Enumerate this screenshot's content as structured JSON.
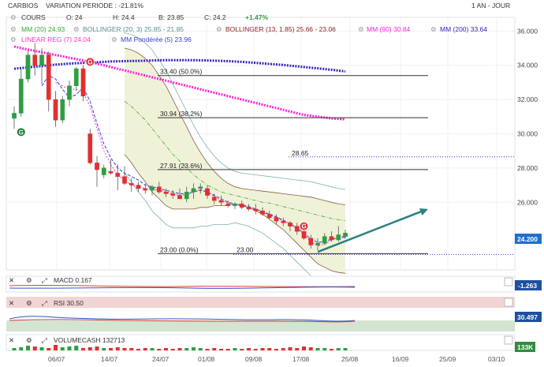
{
  "header": {
    "name": "CARBIOS",
    "variation": "VARIATION PERIODE : -21.81%",
    "period": "1 AN - JOUR",
    "ohlc": {
      "o_label": "O:",
      "o": "24",
      "h_label": "H:",
      "h": "24.4",
      "b_label": "B:",
      "b": "23.85",
      "c_label": "C:",
      "c": "24.2",
      "change": "+1.47%"
    }
  },
  "legend": {
    "cours": "COURS",
    "mm20": "MM (20)  24.93",
    "bollinger20": "BOLLINGER (20, 3)  25.85 - 21.85",
    "bollinger13": "BOLLINGER (13, 1.85)  25.66 - 23.06",
    "mm90": "MM (90)  30.84",
    "mm200": "MM (200)  33.64",
    "linreg": "LINEAR REG (7)  24.04",
    "mm_pond": "MM Pondérée (5)  23.96"
  },
  "colors": {
    "up": "#2e9e44",
    "down": "#e03030",
    "mm20": "#33aa33",
    "bollinger": "#d4d8a0",
    "bollinger_fill": "#f0f2d8",
    "bollinger2": "#8c5a3c",
    "mm90": "#ff22dd",
    "mm200": "#3322bb",
    "linreg": "#ff33cc",
    "wma": "#3344cc",
    "trend_arrow": "#2a8080",
    "price_tag": "#1f6fd0"
  },
  "chart_data": {
    "type": "candlestick",
    "y_ticks": [
      "36.000",
      "34.000",
      "32.000",
      "30.000",
      "28.000",
      "26.000"
    ],
    "ylim": [
      22.6,
      36.2
    ],
    "x_ticks": [
      "06/07",
      "14/07",
      "24/07",
      "01/08",
      "09/08",
      "17/08",
      "25/08",
      "16/09",
      "25/09",
      "03/10"
    ],
    "last_price": "24.200",
    "candles": [
      [
        30.9,
        31.6,
        30.3,
        31.2
      ],
      [
        31.2,
        33.8,
        31.0,
        33.2
      ],
      [
        33.2,
        34.9,
        33.0,
        34.6
      ],
      [
        34.6,
        35.3,
        33.4,
        34.0
      ],
      [
        34.0,
        35.0,
        32.9,
        34.6
      ],
      [
        34.6,
        34.8,
        31.3,
        32.0
      ],
      [
        32.0,
        32.5,
        30.4,
        30.8
      ],
      [
        30.8,
        32.2,
        30.6,
        32.0
      ],
      [
        32.0,
        33.1,
        31.6,
        32.8
      ],
      [
        32.8,
        33.9,
        32.5,
        33.8
      ],
      [
        33.8,
        34.0,
        31.9,
        32.2
      ],
      [
        30.0,
        30.3,
        28.2,
        28.3
      ],
      [
        28.3,
        28.7,
        26.9,
        27.9
      ],
      [
        27.6,
        28.2,
        27.4,
        28.0
      ],
      [
        27.8,
        28.5,
        27.6,
        27.7
      ],
      [
        27.7,
        28.2,
        26.7,
        27.5
      ],
      [
        27.5,
        28.1,
        27.0,
        27.1
      ],
      [
        27.1,
        27.4,
        26.6,
        27.0
      ],
      [
        27.0,
        27.2,
        26.6,
        26.8
      ],
      [
        26.8,
        27.1,
        26.5,
        26.7
      ],
      [
        26.7,
        27.0,
        26.4,
        26.9
      ],
      [
        26.9,
        27.2,
        26.5,
        26.6
      ],
      [
        26.6,
        26.8,
        26.3,
        26.5
      ],
      [
        26.5,
        26.7,
        26.2,
        26.4
      ],
      [
        26.4,
        26.8,
        26.2,
        26.2
      ],
      [
        26.2,
        26.9,
        26.0,
        26.6
      ],
      [
        26.6,
        27.1,
        26.2,
        26.8
      ],
      [
        26.8,
        27.1,
        26.5,
        26.9
      ],
      [
        26.8,
        27.0,
        26.2,
        26.4
      ],
      [
        26.3,
        26.5,
        25.9,
        26.1
      ],
      [
        26.1,
        26.4,
        25.8,
        26.0
      ],
      [
        25.9,
        26.1,
        25.7,
        25.8
      ],
      [
        25.8,
        26.0,
        25.6,
        25.9
      ],
      [
        25.9,
        26.1,
        25.6,
        25.7
      ],
      [
        25.7,
        25.9,
        25.5,
        25.6
      ],
      [
        25.6,
        25.9,
        25.3,
        25.5
      ],
      [
        25.5,
        25.7,
        25.2,
        25.3
      ],
      [
        25.3,
        25.5,
        25.0,
        25.1
      ],
      [
        25.1,
        25.3,
        24.7,
        24.9
      ],
      [
        24.9,
        25.1,
        24.6,
        24.8
      ],
      [
        24.8,
        24.9,
        24.3,
        24.6
      ],
      [
        24.6,
        24.8,
        24.1,
        24.3
      ],
      [
        24.3,
        24.5,
        23.8,
        23.9
      ],
      [
        23.9,
        24.1,
        23.3,
        23.5
      ],
      [
        23.5,
        23.9,
        23.2,
        23.6
      ],
      [
        23.6,
        24.2,
        23.5,
        24.0
      ],
      [
        24.0,
        24.3,
        23.7,
        23.8
      ],
      [
        23.8,
        24.6,
        23.7,
        24.1
      ],
      [
        24.0,
        24.4,
        23.85,
        24.2
      ]
    ],
    "mm20": [
      null,
      null,
      null,
      null,
      null,
      null,
      null,
      null,
      null,
      null,
      null,
      null,
      null,
      null,
      null,
      null,
      31.9,
      31.6,
      31.2,
      30.8,
      30.3,
      29.8,
      29.3,
      28.8,
      28.4,
      28.0,
      27.6,
      27.3,
      27.0,
      26.8,
      26.6,
      26.5,
      26.4,
      26.3,
      26.2,
      26.1,
      26.0,
      25.95,
      25.85,
      25.75,
      25.65,
      25.55,
      25.45,
      25.35,
      25.25,
      25.15,
      25.05,
      24.98,
      24.93
    ],
    "boll_upper": [
      null,
      null,
      null,
      null,
      null,
      null,
      null,
      null,
      null,
      null,
      null,
      null,
      null,
      null,
      null,
      null,
      35.0,
      34.9,
      34.7,
      34.4,
      34.0,
      33.4,
      32.8,
      32.0,
      31.2,
      30.4,
      29.6,
      28.9,
      28.3,
      27.8,
      27.4,
      27.1,
      26.9,
      26.8,
      26.75,
      26.7,
      26.65,
      26.6,
      26.55,
      26.5,
      26.45,
      26.4,
      26.35,
      26.3,
      26.2,
      26.1,
      26.0,
      25.9,
      25.85
    ],
    "boll_lower": [
      null,
      null,
      null,
      null,
      null,
      null,
      null,
      null,
      null,
      null,
      null,
      null,
      null,
      null,
      null,
      null,
      28.8,
      28.3,
      27.7,
      27.2,
      26.6,
      26.2,
      25.8,
      25.6,
      25.6,
      25.6,
      25.6,
      25.7,
      25.7,
      25.8,
      25.8,
      25.8,
      25.9,
      25.8,
      25.7,
      25.5,
      25.3,
      25.0,
      24.7,
      24.4,
      24.0,
      23.6,
      23.2,
      22.8,
      22.4,
      22.2,
      22.0,
      21.9,
      21.85
    ],
    "mm90": [
      35.1,
      35.0,
      34.92,
      34.84,
      34.76,
      34.68,
      34.6,
      34.52,
      34.44,
      34.36,
      34.28,
      34.2,
      34.1,
      34.0,
      33.9,
      33.8,
      33.7,
      33.6,
      33.5,
      33.4,
      33.3,
      33.2,
      33.1,
      33.0,
      32.9,
      32.8,
      32.7,
      32.6,
      32.5,
      32.4,
      32.3,
      32.2,
      32.1,
      32.0,
      31.9,
      31.8,
      31.7,
      31.6,
      31.5,
      31.4,
      31.3,
      31.2,
      31.1,
      31.05,
      31.0,
      30.95,
      30.9,
      30.87,
      30.84
    ],
    "mm200": [
      33.8,
      33.84,
      33.88,
      33.92,
      33.96,
      34.0,
      34.04,
      34.07,
      34.1,
      34.12,
      34.14,
      34.16,
      34.18,
      34.2,
      34.22,
      34.23,
      34.24,
      34.25,
      34.26,
      34.27,
      34.28,
      34.29,
      34.3,
      34.3,
      34.3,
      34.3,
      34.3,
      34.29,
      34.28,
      34.27,
      34.26,
      34.24,
      34.22,
      34.2,
      34.17,
      34.14,
      34.11,
      34.08,
      34.05,
      34.02,
      33.98,
      33.94,
      33.9,
      33.86,
      33.82,
      33.78,
      33.74,
      33.69,
      33.64
    ],
    "wma": [
      null,
      null,
      null,
      null,
      32.8,
      33.4,
      33.2,
      32.6,
      32.1,
      32.3,
      32.7,
      31.9,
      30.6,
      29.4,
      28.6,
      28.0,
      27.7,
      27.5,
      27.3,
      27.0,
      26.9,
      26.8,
      26.7,
      26.6,
      26.5,
      26.5,
      26.6,
      26.7,
      26.6,
      26.4,
      26.2,
      26.0,
      25.9,
      25.85,
      25.75,
      25.6,
      25.45,
      25.3,
      25.15,
      24.95,
      24.75,
      24.5,
      24.2,
      23.85,
      23.65,
      23.7,
      23.85,
      23.9,
      23.96
    ],
    "linreg": [
      null,
      null,
      null,
      null,
      null,
      null,
      33.0,
      32.8,
      32.6,
      32.6,
      32.4,
      31.6,
      30.3,
      29.0,
      28.2,
      27.6,
      27.3,
      27.0,
      26.9,
      26.8,
      26.75,
      26.7,
      26.6,
      26.5,
      26.4,
      26.45,
      26.6,
      26.75,
      26.6,
      26.35,
      26.1,
      25.95,
      25.85,
      25.8,
      25.7,
      25.55,
      25.4,
      25.25,
      25.1,
      24.9,
      24.7,
      24.45,
      24.1,
      23.7,
      23.45,
      23.55,
      23.8,
      23.95,
      24.04
    ],
    "fib_levels": [
      {
        "label": "33.40  (50.0%)",
        "value": 33.4
      },
      {
        "label": "30.94  (38.2%)",
        "value": 30.94
      },
      {
        "label": "27.91  (23.6%)",
        "value": 27.91
      },
      {
        "label": "23.00  (0.0%)",
        "value": 23.0
      }
    ],
    "level_2865": {
      "label": "28.65",
      "value": 28.65
    },
    "level_2300": {
      "label": "23.00",
      "value": 23.0
    },
    "signals": [
      {
        "label": "G",
        "index": 1,
        "value": 30.1,
        "color": "#1e7a2e"
      },
      {
        "label": "G",
        "index": 11,
        "value": 34.2,
        "color": "#e03030"
      },
      {
        "label": "G",
        "index": 42,
        "value": 24.6,
        "color": "#e03030"
      }
    ],
    "trend_arrow": {
      "from": [
        44,
        23.1
      ],
      "to": [
        60,
        25.6
      ]
    }
  },
  "indicators": {
    "macd": {
      "label": "MACD  0.167",
      "value_tag": "-1.263"
    },
    "rsi": {
      "label": "RSI  30.50",
      "value_tag": "30.497"
    },
    "volume": {
      "label": "VOLUMECASH  132713",
      "value_tag": "133K"
    }
  }
}
